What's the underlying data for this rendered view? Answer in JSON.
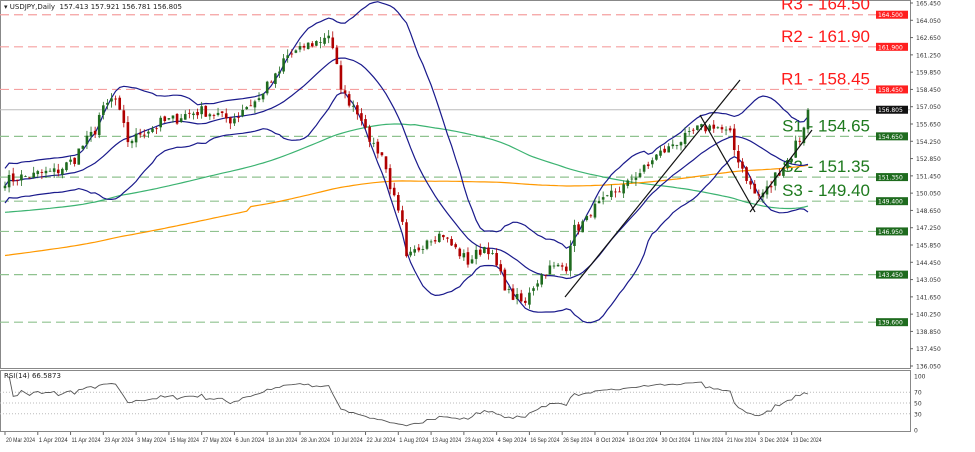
{
  "header": {
    "symbol": "USDJPY,Daily",
    "ohlc": "157.413 157.921 156.781 156.805"
  },
  "levels": [
    {
      "label": "R3 - 164.50",
      "price": 164.5,
      "tag": "164.500",
      "color": "#ff1a1a"
    },
    {
      "label": "R2 - 161.90",
      "price": 161.9,
      "tag": "161.900",
      "color": "#ff1a1a"
    },
    {
      "label": "R1 - 158.45",
      "price": 158.45,
      "tag": "158.450",
      "color": "#ff1a1a"
    },
    {
      "label": "S1 - 154.65",
      "price": 154.65,
      "tag": "154.650",
      "color": "#1e7a1e"
    },
    {
      "label": "S2 - 151.35",
      "price": 151.35,
      "tag": "151.350",
      "color": "#1e7a1e"
    },
    {
      "label": "S3 - 149.40",
      "price": 149.4,
      "tag": "149.400",
      "color": "#1e7a1e"
    },
    {
      "label": "",
      "price": 146.95,
      "tag": "146.950",
      "color": "#1e7a1e"
    },
    {
      "label": "",
      "price": 143.45,
      "tag": "143.450",
      "color": "#1e7a1e"
    },
    {
      "label": "",
      "price": 139.6,
      "tag": "139.600",
      "color": "#1e7a1e"
    }
  ],
  "current_price": {
    "value": 156.805,
    "tag": "156.805"
  },
  "rsi": {
    "label": "RSI(14) 66.5873",
    "levels": [
      100,
      70,
      50,
      30,
      0
    ]
  },
  "chart_data": {
    "type": "candlestick",
    "title": "USDJPY,Daily",
    "ylim": [
      136.05,
      165.45
    ],
    "y_ticks": [
      "165.450",
      "164.050",
      "162.650",
      "161.250",
      "159.850",
      "158.450",
      "157.050",
      "155.650",
      "154.250",
      "152.850",
      "151.450",
      "150.050",
      "148.650",
      "147.250",
      "145.850",
      "144.450",
      "143.050",
      "141.650",
      "140.250",
      "138.850",
      "137.450",
      "136.050"
    ],
    "x_ticks": [
      "20 Mar 2024",
      "1 Apr 2024",
      "11 Apr 2024",
      "23 Apr 2024",
      "3 May 2024",
      "15 May 2024",
      "27 May 2024",
      "6 Jun 2024",
      "18 Jun 2024",
      "28 Jun 2024",
      "10 Jul 2024",
      "22 Jul 2024",
      "1 Aug 2024",
      "13 Aug 2024",
      "23 Aug 2024",
      "4 Sep 2024",
      "16 Sep 2024",
      "26 Sep 2024",
      "8 Oct 2024",
      "18 Oct 2024",
      "30 Oct 2024",
      "11 Nov 2024",
      "21 Nov 2024",
      "3 Dec 2024",
      "13 Dec 2024"
    ],
    "close_path": [
      [
        "2024-03-20",
        151.1
      ],
      [
        "2024-04-08",
        151.9
      ],
      [
        "2024-04-15",
        153.5
      ],
      [
        "2024-04-25",
        157.6
      ],
      [
        "2024-04-28",
        157.5
      ],
      [
        "2024-05-01",
        154.3
      ],
      [
        "2024-05-11",
        155.6
      ],
      [
        "2024-05-26",
        156.8
      ],
      [
        "2024-06-05",
        156.0
      ],
      [
        "2024-06-16",
        158.0
      ],
      [
        "2024-06-25",
        161.2
      ],
      [
        "2024-07-09",
        162.9
      ],
      [
        "2024-07-12",
        158.8
      ],
      [
        "2024-07-17",
        157.2
      ],
      [
        "2024-07-24",
        154.0
      ],
      [
        "2024-07-29",
        151.9
      ],
      [
        "2024-08-01",
        148.3
      ],
      [
        "2024-08-05",
        144.6
      ],
      [
        "2024-08-10",
        146.3
      ],
      [
        "2024-08-17",
        146.8
      ],
      [
        "2024-08-25",
        144.2
      ],
      [
        "2024-09-01",
        146.3
      ],
      [
        "2024-09-06",
        142.6
      ],
      [
        "2024-09-13",
        141.0
      ],
      [
        "2024-09-20",
        143.8
      ],
      [
        "2024-09-28",
        144.2
      ],
      [
        "2024-10-01",
        147.1
      ],
      [
        "2024-10-09",
        149.1
      ],
      [
        "2024-10-20",
        151.1
      ],
      [
        "2024-10-31",
        153.5
      ],
      [
        "2024-11-12",
        155.2
      ],
      [
        "2024-11-18",
        155.6
      ],
      [
        "2024-11-24",
        154.3
      ],
      [
        "2024-11-29",
        150.6
      ],
      [
        "2024-12-03",
        149.8
      ],
      [
        "2024-12-09",
        151.5
      ],
      [
        "2024-12-14",
        153.5
      ],
      [
        "2024-12-17",
        154.4
      ],
      [
        "2024-12-19",
        156.805
      ]
    ],
    "indicators": [
      "Bollinger Bands",
      "Moving Average",
      "Moving Average",
      "RSI(14)"
    ],
    "colors": {
      "bull": "#1f6b1f",
      "bear": "#b00000",
      "bands": "#1a1a8c",
      "ma_fast": "#3cb371",
      "ma_slow": "#ff9900"
    },
    "grid": false
  }
}
